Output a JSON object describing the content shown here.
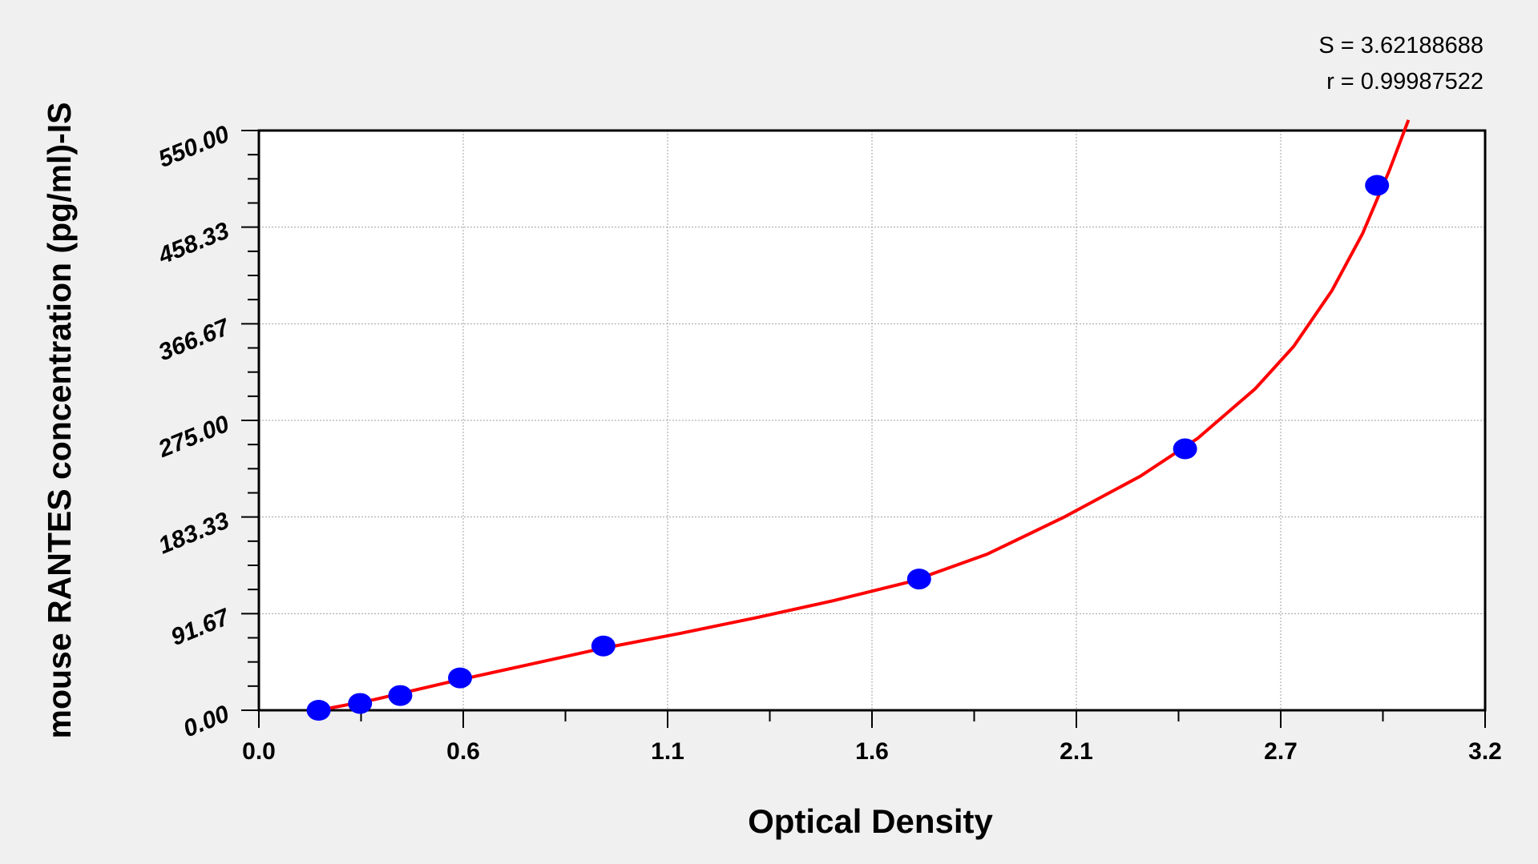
{
  "chart_data": {
    "type": "scatter",
    "xlabel": "Optical Density",
    "ylabel": "mouse RANTES concentration (pg/ml)-IS",
    "xlim": [
      0,
      3.2
    ],
    "ylim": [
      0,
      550
    ],
    "x_tick_labels": [
      "0.0",
      "0.6",
      "1.1",
      "1.6",
      "2.1",
      "2.7",
      "3.2"
    ],
    "y_tick_labels": [
      "0.00",
      "91.67",
      "183.33",
      "275.00",
      "366.67",
      "458.33",
      "550.00"
    ],
    "grid": true,
    "annotations": [
      "S = 3.62188688",
      "r = 0.99987522"
    ],
    "points": {
      "x": [
        0.156,
        0.264,
        0.369,
        0.525,
        0.899,
        1.723,
        2.417,
        2.918
      ],
      "y": [
        0,
        6.5,
        14,
        30.7,
        61,
        124.5,
        248,
        498
      ],
      "color": "#0000ff"
    },
    "fit_curve": {
      "x": [
        0.156,
        0.3,
        0.5,
        0.7,
        0.9,
        1.1,
        1.3,
        1.5,
        1.7,
        1.9,
        2.1,
        2.3,
        2.45,
        2.6,
        2.7,
        2.8,
        2.88,
        2.95,
        3.0
      ],
      "y": [
        0,
        10,
        27,
        43,
        59,
        73,
        88,
        104,
        122,
        148,
        183,
        222,
        258,
        305,
        345,
        398,
        452,
        512,
        560
      ],
      "color": "#ff0000"
    }
  }
}
